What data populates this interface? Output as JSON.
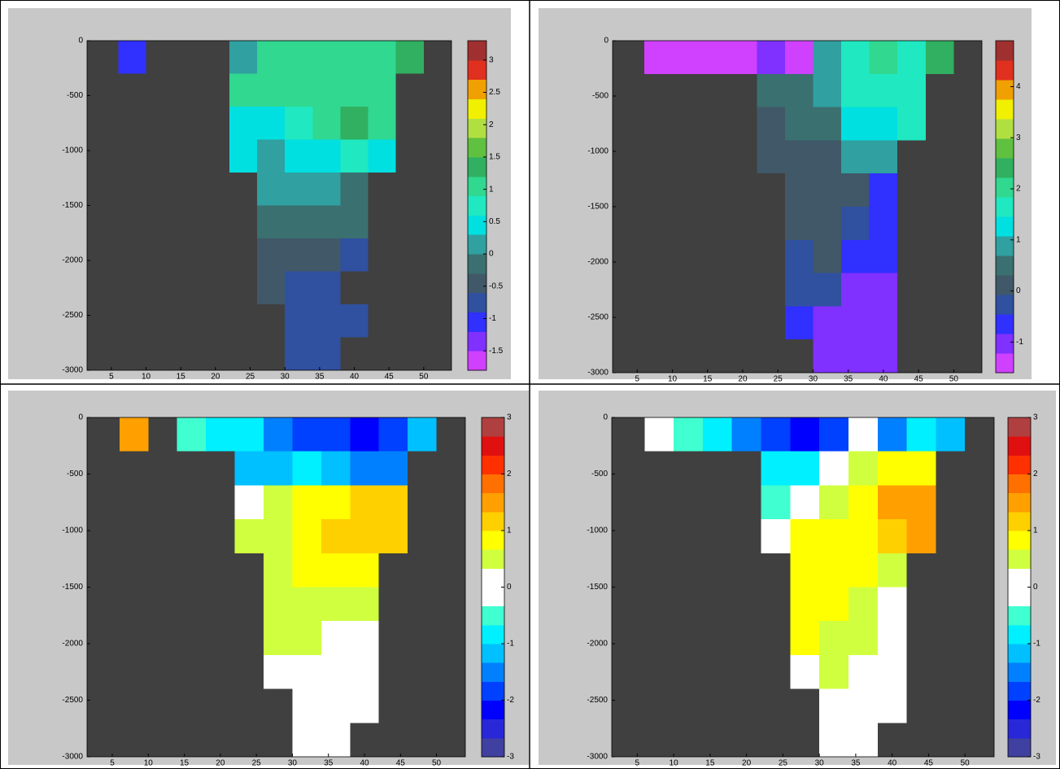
{
  "chart_data": [
    {
      "type": "heatmap",
      "x": [
        4,
        8,
        12,
        16,
        20,
        24,
        28,
        32,
        36,
        40,
        44,
        48,
        52
      ],
      "y": [
        -150,
        -450,
        -750,
        -1050,
        -1350,
        -1650,
        -1950,
        -2250,
        -2550,
        -2850
      ],
      "values": [
        [
          null,
          -1.2,
          null,
          null,
          null,
          0.2,
          0.9,
          0.9,
          1.0,
          1.1,
          1.0,
          1.2,
          null
        ],
        [
          null,
          null,
          null,
          null,
          null,
          0.9,
          0.9,
          0.9,
          1.0,
          1.1,
          1.0,
          null,
          null
        ],
        [
          null,
          null,
          null,
          null,
          null,
          0.4,
          0.4,
          0.6,
          1.0,
          1.2,
          1.1,
          null,
          null
        ],
        [
          null,
          null,
          null,
          null,
          null,
          0.3,
          0.2,
          0.3,
          0.5,
          0.6,
          0.3,
          null,
          null
        ],
        [
          null,
          null,
          null,
          null,
          null,
          null,
          0.1,
          0.1,
          0.0,
          -0.1,
          null,
          null,
          null
        ],
        [
          null,
          null,
          null,
          null,
          null,
          null,
          -0.1,
          -0.2,
          -0.3,
          -0.3,
          null,
          null,
          null
        ],
        [
          null,
          null,
          null,
          null,
          null,
          null,
          -0.5,
          -0.6,
          -0.6,
          -0.7,
          null,
          null,
          null
        ],
        [
          null,
          null,
          null,
          null,
          null,
          null,
          -0.6,
          -0.7,
          -0.7,
          null,
          null,
          null,
          null
        ],
        [
          null,
          null,
          null,
          null,
          null,
          null,
          null,
          -0.8,
          -0.8,
          -0.9,
          null,
          null,
          null
        ],
        [
          null,
          null,
          null,
          null,
          null,
          null,
          null,
          -0.9,
          -0.9,
          null,
          null,
          null,
          null
        ]
      ],
      "xlim": [
        1.5,
        54
      ],
      "ylim": [
        -3000,
        0
      ],
      "xticks": [
        5,
        10,
        15,
        20,
        25,
        30,
        35,
        40,
        45,
        50
      ],
      "yticks": [
        -3000,
        -2500,
        -2000,
        -1500,
        -1000,
        -500,
        0
      ],
      "null_color": "#404040",
      "colorbar": {
        "clim": [
          -1.8,
          3.3
        ],
        "ticks": [
          -1.5,
          -1,
          -0.5,
          0,
          0.5,
          1,
          1.5,
          2,
          2.5,
          3
        ],
        "colors": [
          "#d040ff",
          "#8030ff",
          "#3030ff",
          "#3050a0",
          "#405868",
          "#3a7070",
          "#30a0a0",
          "#00e0e0",
          "#20e8c0",
          "#30d890",
          "#30b060",
          "#60c040",
          "#b0e040",
          "#f0f000",
          "#f0a000",
          "#e03020",
          "#a03030"
        ]
      }
    },
    {
      "type": "heatmap",
      "x": [
        4,
        8,
        12,
        16,
        20,
        24,
        28,
        32,
        36,
        40,
        44,
        48,
        52
      ],
      "y": [
        -150,
        -450,
        -750,
        -1050,
        -1350,
        -1650,
        -1950,
        -2250,
        -2550,
        -2850
      ],
      "values": [
        [
          null,
          -1.4,
          -1.5,
          -1.4,
          -1.3,
          -1.2,
          -1.3,
          1.0,
          1.8,
          2.0,
          1.5,
          2.5,
          null
        ],
        [
          null,
          null,
          null,
          null,
          null,
          0.5,
          0.6,
          1.0,
          1.5,
          1.7,
          1.6,
          null,
          null
        ],
        [
          null,
          null,
          null,
          null,
          null,
          0.3,
          0.4,
          0.6,
          1.2,
          1.4,
          1.5,
          null,
          null
        ],
        [
          null,
          null,
          null,
          null,
          null,
          0.3,
          0.3,
          0.3,
          0.8,
          0.9,
          null,
          null,
          null
        ],
        [
          null,
          null,
          null,
          null,
          null,
          null,
          0.3,
          0.2,
          0.0,
          -0.6,
          null,
          null,
          null
        ],
        [
          null,
          null,
          null,
          null,
          null,
          null,
          0.3,
          0.2,
          -0.3,
          -0.7,
          null,
          null,
          null
        ],
        [
          null,
          null,
          null,
          null,
          null,
          null,
          -0.1,
          0.0,
          -0.6,
          -0.8,
          null,
          null,
          null
        ],
        [
          null,
          null,
          null,
          null,
          null,
          null,
          -0.3,
          -0.2,
          -0.9,
          -0.9,
          null,
          null,
          null
        ],
        [
          null,
          null,
          null,
          null,
          null,
          null,
          -0.5,
          -0.9,
          -1.0,
          -1.0,
          null,
          null,
          null
        ],
        [
          null,
          null,
          null,
          null,
          null,
          null,
          null,
          -1.0,
          -1.0,
          -1.1,
          null,
          null,
          null
        ]
      ],
      "xlim": [
        1.5,
        54
      ],
      "ylim": [
        -3000,
        0
      ],
      "xticks": [
        5,
        10,
        15,
        20,
        25,
        30,
        35,
        40,
        45,
        50
      ],
      "yticks": [
        -3000,
        -2500,
        -2000,
        -1500,
        -1000,
        -500,
        0
      ],
      "null_color": "#404040",
      "colorbar": {
        "clim": [
          -1.6,
          4.9
        ],
        "ticks": [
          -1,
          0,
          1,
          2,
          3,
          4
        ],
        "colors": [
          "#d040ff",
          "#8030ff",
          "#3030ff",
          "#3050a0",
          "#405868",
          "#3a7070",
          "#30a0a0",
          "#00e0e0",
          "#20e8c0",
          "#30d890",
          "#30b060",
          "#60c040",
          "#b0e040",
          "#f0f000",
          "#f0a000",
          "#e03020",
          "#a03030"
        ]
      }
    },
    {
      "type": "heatmap",
      "x": [
        4,
        8,
        12,
        16,
        20,
        24,
        28,
        32,
        36,
        40,
        44,
        48,
        52
      ],
      "y": [
        -150,
        -450,
        -750,
        -1050,
        -1350,
        -1650,
        -1950,
        -2250,
        -2550,
        -2850
      ],
      "values": [
        [
          null,
          1.5,
          null,
          -0.6,
          -0.8,
          -1.0,
          -1.5,
          -1.8,
          -2.0,
          -2.2,
          -2.0,
          -1.2,
          null
        ],
        [
          null,
          null,
          null,
          null,
          null,
          -1.2,
          -1.3,
          -1.0,
          -1.2,
          -1.5,
          -1.6,
          null,
          null
        ],
        [
          null,
          null,
          null,
          null,
          null,
          0.0,
          0.6,
          0.7,
          0.8,
          1.0,
          1.0,
          null,
          null
        ],
        [
          null,
          null,
          null,
          null,
          null,
          0.5,
          0.6,
          0.8,
          1.0,
          1.2,
          1.1,
          null,
          null
        ],
        [
          null,
          null,
          null,
          null,
          null,
          null,
          0.6,
          0.7,
          0.8,
          0.8,
          null,
          null,
          null
        ],
        [
          null,
          null,
          null,
          null,
          null,
          null,
          0.5,
          0.6,
          0.6,
          0.5,
          null,
          null,
          null
        ],
        [
          null,
          null,
          null,
          null,
          null,
          null,
          0.5,
          0.5,
          0.0,
          0.0,
          null,
          null,
          null
        ],
        [
          null,
          null,
          null,
          null,
          null,
          null,
          0.0,
          0.0,
          0.0,
          0.0,
          null,
          null,
          null
        ],
        [
          null,
          null,
          null,
          null,
          null,
          null,
          null,
          0.0,
          0.0,
          0.0,
          null,
          null,
          null
        ],
        [
          null,
          null,
          null,
          null,
          null,
          null,
          null,
          0.0,
          0.0,
          null,
          null,
          null,
          null
        ]
      ],
      "xlim": [
        1.5,
        54
      ],
      "ylim": [
        -3000,
        0
      ],
      "xticks": [
        5,
        10,
        15,
        20,
        25,
        30,
        35,
        40,
        45,
        50
      ],
      "yticks": [
        -3000,
        -2500,
        -2000,
        -1500,
        -1000,
        -500,
        0
      ],
      "null_color": "#404040",
      "colorbar": {
        "clim": [
          -3,
          3
        ],
        "ticks": [
          -3,
          -2,
          -1,
          0,
          1,
          2,
          3
        ],
        "colors": [
          "#4040a0",
          "#2828d8",
          "#0000ff",
          "#0040ff",
          "#0080ff",
          "#00c0ff",
          "#00f0ff",
          "#40ffd0",
          "#ffffff",
          "#ffffff",
          "#d0ff40",
          "#ffff00",
          "#ffd000",
          "#ffa000",
          "#ff7000",
          "#ff3000",
          "#e01010",
          "#b04040"
        ]
      }
    },
    {
      "type": "heatmap",
      "x": [
        4,
        8,
        12,
        16,
        20,
        24,
        28,
        32,
        36,
        40,
        44,
        48,
        52
      ],
      "y": [
        -150,
        -450,
        -750,
        -1050,
        -1350,
        -1650,
        -1950,
        -2250,
        -2550,
        -2850
      ],
      "values": [
        [
          null,
          0.1,
          -0.5,
          -0.8,
          -1.5,
          -2.0,
          -2.2,
          -1.8,
          0.0,
          -1.5,
          -1.0,
          -1.2,
          null
        ],
        [
          null,
          null,
          null,
          null,
          null,
          -1.0,
          -0.8,
          0.0,
          0.6,
          0.7,
          0.9,
          null,
          null
        ],
        [
          null,
          null,
          null,
          null,
          null,
          -0.5,
          0.0,
          0.5,
          0.8,
          1.6,
          1.6,
          null,
          null
        ],
        [
          null,
          null,
          null,
          null,
          null,
          0.0,
          0.7,
          0.8,
          0.7,
          1.3,
          1.4,
          null,
          null
        ],
        [
          null,
          null,
          null,
          null,
          null,
          null,
          0.9,
          0.8,
          0.7,
          0.5,
          null,
          null,
          null
        ],
        [
          null,
          null,
          null,
          null,
          null,
          null,
          0.9,
          0.8,
          0.6,
          0.0,
          null,
          null,
          null
        ],
        [
          null,
          null,
          null,
          null,
          null,
          null,
          0.7,
          0.6,
          0.5,
          0.0,
          null,
          null,
          null
        ],
        [
          null,
          null,
          null,
          null,
          null,
          null,
          0.0,
          0.5,
          0.0,
          0.0,
          null,
          null,
          null
        ],
        [
          null,
          null,
          null,
          null,
          null,
          null,
          null,
          0.0,
          0.0,
          0.0,
          null,
          null,
          null
        ],
        [
          null,
          null,
          null,
          null,
          null,
          null,
          null,
          0.0,
          0.0,
          null,
          null,
          null,
          null
        ]
      ],
      "xlim": [
        1.5,
        54
      ],
      "ylim": [
        -3000,
        0
      ],
      "xticks": [
        5,
        10,
        15,
        20,
        25,
        30,
        35,
        40,
        45,
        50
      ],
      "yticks": [
        -3000,
        -2500,
        -2000,
        -1500,
        -1000,
        -500,
        0
      ],
      "null_color": "#404040",
      "colorbar": {
        "clim": [
          -3,
          3
        ],
        "ticks": [
          -3,
          -2,
          -1,
          0,
          1,
          2,
          3
        ],
        "colors": [
          "#4040a0",
          "#2828d8",
          "#0000ff",
          "#0040ff",
          "#0080ff",
          "#00c0ff",
          "#00f0ff",
          "#40ffd0",
          "#ffffff",
          "#ffffff",
          "#d0ff40",
          "#ffff00",
          "#ffd000",
          "#ffa000",
          "#ff7000",
          "#ff3000",
          "#e01010",
          "#b04040"
        ]
      }
    }
  ]
}
